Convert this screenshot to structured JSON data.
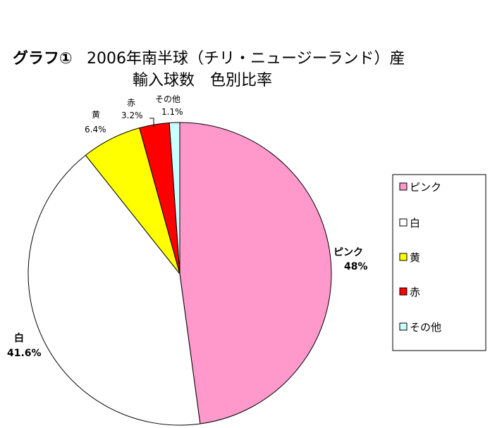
{
  "chart_data": {
    "type": "pie",
    "title_prefix": "グラフ①",
    "title_line1": "2006年南半球（チリ・ニュージーランド）産",
    "title_line2": "輸入球数　色別比率",
    "start_angle_deg": 0,
    "direction": "clockwise",
    "slices": [
      {
        "name": "ピンク",
        "value": 48,
        "value_label": "48%",
        "color": "#ff99cc"
      },
      {
        "name": "白",
        "value": 41.6,
        "value_label": "41.6%",
        "color": "#ffffff"
      },
      {
        "name": "黄",
        "value": 6.4,
        "value_label": "6.4%",
        "color": "#ffff00"
      },
      {
        "name": "赤",
        "value": 3.2,
        "value_label": "3.2%",
        "color": "#ff0000"
      },
      {
        "name": "その他",
        "value": 1.1,
        "value_label": "1.1%",
        "color": "#ccffff"
      }
    ],
    "legend": {
      "placement": "right",
      "entries": [
        "ピンク",
        "白",
        "黄",
        "赤",
        "その他"
      ]
    }
  }
}
